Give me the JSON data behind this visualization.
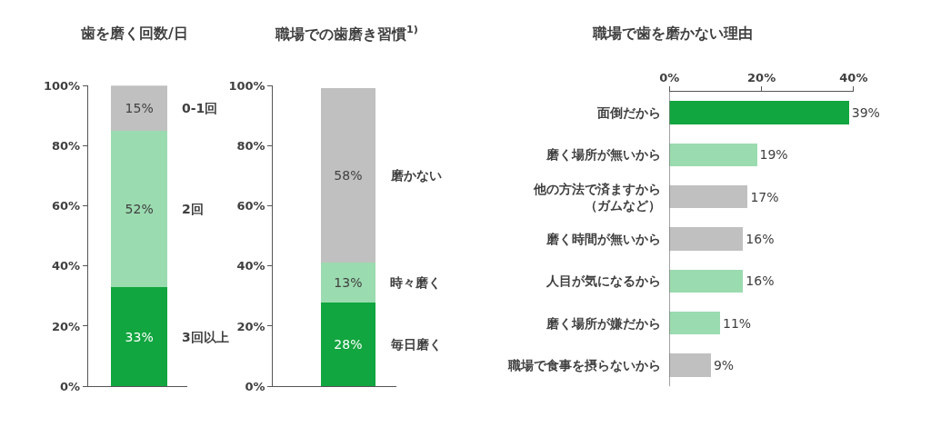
{
  "chart_data": [
    {
      "type": "bar",
      "title": "歯を磨く回数/日",
      "stacked": true,
      "categories": [
        null
      ],
      "tick_labels": "y",
      "ylim": [
        0,
        100
      ],
      "yticks": [
        {
          "value": 0,
          "label": "0%"
        },
        {
          "value": 20,
          "label": "20%"
        },
        {
          "value": 40,
          "label": "40%"
        },
        {
          "value": 60,
          "label": "60%"
        },
        {
          "value": 80,
          "label": "80%"
        },
        {
          "value": 100,
          "label": "100%"
        }
      ],
      "series": [
        {
          "name": "3回以上",
          "color": "#11a63f",
          "values": [
            33
          ],
          "value_labels": [
            "33%"
          ]
        },
        {
          "name": "2回",
          "color": "#9bdbb0",
          "values": [
            52
          ],
          "value_labels": [
            "52%"
          ]
        },
        {
          "name": "0-1回",
          "color": "#c0c0c0",
          "values": [
            15
          ],
          "value_labels": [
            "15%"
          ]
        }
      ]
    },
    {
      "type": "bar",
      "title": "職場での歯磨き習慣$^{1)}$",
      "stacked": true,
      "categories": [
        null
      ],
      "tick_labels": "y",
      "ylim": [
        0,
        100
      ],
      "yticks": [
        {
          "value": 0,
          "label": "0%"
        },
        {
          "value": 20,
          "label": "20%"
        },
        {
          "value": 40,
          "label": "40%"
        },
        {
          "value": 60,
          "label": "60%"
        },
        {
          "value": 80,
          "label": "80%"
        },
        {
          "value": 100,
          "label": "100%"
        }
      ],
      "series": [
        {
          "name": "毎日磨く",
          "color": "#11a63f",
          "values": [
            28
          ],
          "value_labels": [
            "28%"
          ]
        },
        {
          "name": "時々磨く",
          "color": "#9bdbb0",
          "values": [
            13
          ],
          "value_labels": [
            "13%"
          ]
        },
        {
          "name": "磨かない",
          "color": "#c0c0c0",
          "values": [
            58
          ],
          "value_labels": [
            "58%"
          ]
        }
      ]
    },
    {
      "type": "bar",
      "title": "職場で歯を磨かない理由",
      "orientation": "horizontal",
      "xlim": [
        0,
        40
      ],
      "xticks": [
        {
          "value": 0,
          "label": "0%"
        },
        {
          "value": 20,
          "label": "20%"
        },
        {
          "value": 40,
          "label": "40%"
        }
      ],
      "categories": [
        "面倒だから",
        "磨く場所が無いから",
        "他の方法で済ますから（ガムなど）",
        "磨く時間が無いから",
        "人目が気になるから",
        "磨く場所が嫌だから",
        "職場で食事を摂らないから"
      ],
      "values": [
        39,
        19,
        17,
        16,
        16,
        11,
        9
      ],
      "value_labels": [
        "39%",
        "19%",
        "17%",
        "16%",
        "16%",
        "11%",
        "9%"
      ],
      "colors": [
        "#11a63f",
        "#9bdbb0",
        "#c0c0c0",
        "#c0c0c0",
        "#9bdbb0",
        "#9bdbb0",
        "#c0c0c0"
      ]
    }
  ]
}
